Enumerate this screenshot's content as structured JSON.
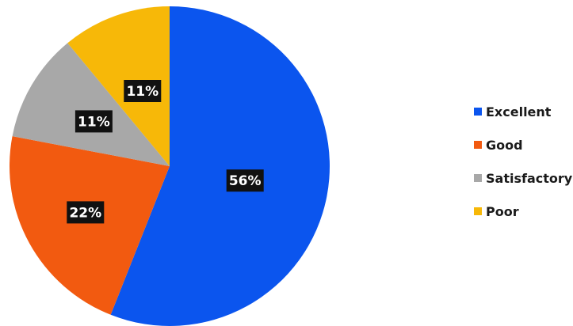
{
  "chart_data": {
    "type": "pie",
    "categories": [
      "Excellent",
      "Good",
      "Satisfactory",
      "Poor"
    ],
    "values": [
      56,
      22,
      11,
      11
    ],
    "data_labels": [
      "56%",
      "22%",
      "11%",
      "11%"
    ],
    "colors": [
      "#0b55ee",
      "#f25a10",
      "#a8a8a8",
      "#f7b808"
    ],
    "title": "",
    "legend_placement": "right",
    "start_angle_deg": 0,
    "direction": "clockwise"
  }
}
